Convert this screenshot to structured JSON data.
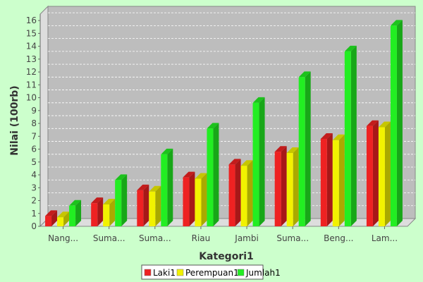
{
  "chart_data": {
    "type": "bar",
    "title": "",
    "xlabel": "Kategori1",
    "ylabel": "Nilai (100rb)",
    "ylim": [
      0,
      16.5
    ],
    "yticks": [
      0,
      1,
      2,
      3,
      4,
      5,
      6,
      7,
      8,
      9,
      10,
      11,
      12,
      13,
      14,
      15,
      16
    ],
    "grid": true,
    "legend_position": "bottom",
    "categories": [
      "Nang...",
      "Suma...",
      "Suma...",
      "Riau",
      "Jambi",
      "Suma...",
      "Beng...",
      "Lam..."
    ],
    "series": [
      {
        "name": "Laki1",
        "color": "#ee2222",
        "values": [
          0.8,
          1.8,
          2.8,
          3.8,
          4.8,
          5.8,
          6.8,
          7.8
        ]
      },
      {
        "name": "Perempuan1",
        "color": "#f2f200",
        "values": [
          0.7,
          1.7,
          2.7,
          3.7,
          4.7,
          5.7,
          6.7,
          7.7
        ]
      },
      {
        "name": "Jumlah1",
        "color": "#22ee22",
        "values": [
          1.6,
          3.6,
          5.6,
          7.6,
          9.6,
          11.6,
          13.6,
          15.6
        ]
      }
    ]
  }
}
